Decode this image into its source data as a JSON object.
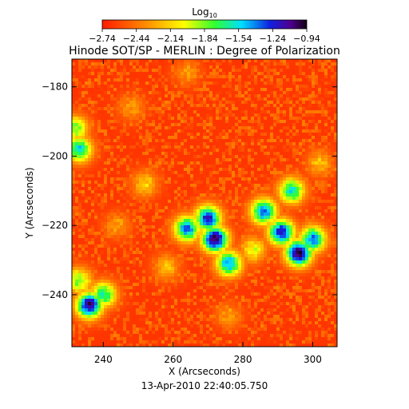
{
  "chart_data": {
    "type": "heatmap",
    "title": "Hinode SOT/SP - MERLIN : Degree of Polarization",
    "subtitle": "13-Apr-2010 22:40:05.750",
    "xlabel": "X (Arcseconds)",
    "ylabel": "Y (Arcseconds)",
    "xlim": [
      231,
      307
    ],
    "ylim": [
      -255,
      -172
    ],
    "x_ticks": [
      240,
      260,
      280,
      300
    ],
    "x_tick_labels": [
      "240",
      "260",
      "280",
      "300"
    ],
    "y_ticks": [
      -180,
      -200,
      -220,
      -240
    ],
    "y_tick_labels": [
      "−180",
      "−200",
      "−220",
      "−240"
    ],
    "colorbar": {
      "title_base": "Log",
      "title_sub": "10",
      "range": [
        -2.74,
        -0.94
      ],
      "tick_values": [
        -2.74,
        -2.44,
        -2.14,
        -1.84,
        -1.54,
        -1.24,
        -0.94
      ],
      "tick_labels": [
        "−2.74",
        "−2.44",
        "−2.14",
        "−1.84",
        "−1.54",
        "−1.24",
        "−0.94"
      ],
      "placement": "top"
    },
    "background_level": -2.65,
    "regions": [
      {
        "x": 272,
        "y": -224,
        "level": -0.95
      },
      {
        "x": 270,
        "y": -218,
        "level": -1.2
      },
      {
        "x": 264,
        "y": -221,
        "level": -1.35
      },
      {
        "x": 276,
        "y": -231,
        "level": -1.4
      },
      {
        "x": 296,
        "y": -228,
        "level": -0.95
      },
      {
        "x": 291,
        "y": -222,
        "level": -1.15
      },
      {
        "x": 286,
        "y": -216,
        "level": -1.3
      },
      {
        "x": 300,
        "y": -224,
        "level": -1.35
      },
      {
        "x": 294,
        "y": -210,
        "level": -1.55
      },
      {
        "x": 283,
        "y": -227,
        "level": -2.0
      },
      {
        "x": 236,
        "y": -243,
        "level": -1.05
      },
      {
        "x": 240,
        "y": -240,
        "level": -1.6
      },
      {
        "x": 233,
        "y": -198,
        "level": -1.5
      },
      {
        "x": 232,
        "y": -192,
        "level": -1.8
      },
      {
        "x": 233,
        "y": -236,
        "level": -1.8
      },
      {
        "x": 252,
        "y": -208,
        "level": -2.15
      },
      {
        "x": 248,
        "y": -186,
        "level": -2.3
      },
      {
        "x": 258,
        "y": -232,
        "level": -2.2
      },
      {
        "x": 302,
        "y": -202,
        "level": -2.2
      },
      {
        "x": 244,
        "y": -220,
        "level": -2.3
      },
      {
        "x": 264,
        "y": -176,
        "level": -2.3
      },
      {
        "x": 276,
        "y": -246,
        "level": -2.3
      }
    ]
  }
}
